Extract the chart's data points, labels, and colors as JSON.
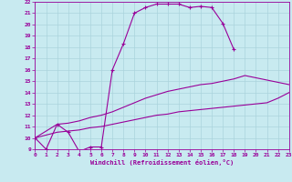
{
  "xlabel": "Windchill (Refroidissement éolien,°C)",
  "bg_color": "#c8eaf0",
  "line_color": "#990099",
  "grid_color": "#aad4dc",
  "xmin": 0,
  "xmax": 23,
  "ymin": 9,
  "ymax": 22,
  "yticks": [
    9,
    10,
    11,
    12,
    13,
    14,
    15,
    16,
    17,
    18,
    19,
    20,
    21,
    22
  ],
  "xticks": [
    0,
    1,
    2,
    3,
    4,
    5,
    6,
    7,
    8,
    9,
    10,
    11,
    12,
    13,
    14,
    15,
    16,
    17,
    18,
    19,
    20,
    21,
    22,
    23
  ],
  "line1_x": [
    0,
    1,
    2,
    3,
    4,
    5,
    6,
    7,
    8,
    9,
    10,
    11,
    12,
    13,
    14,
    15,
    16,
    17,
    18
  ],
  "line1_y": [
    10,
    9,
    11.2,
    10.5,
    8.8,
    9.2,
    9.2,
    16.0,
    18.3,
    21.0,
    21.5,
    21.8,
    21.8,
    21.8,
    21.5,
    21.6,
    21.5,
    20.1,
    17.8
  ],
  "line2_x": [
    0,
    2,
    3,
    4,
    5,
    6,
    7,
    8,
    9,
    10,
    11,
    12,
    13,
    14,
    15,
    16,
    17,
    18,
    19,
    20,
    21,
    22,
    23
  ],
  "line2_y": [
    10,
    11.2,
    11.3,
    11.5,
    11.8,
    12.0,
    12.3,
    12.7,
    13.1,
    13.5,
    13.8,
    14.1,
    14.3,
    14.5,
    14.7,
    14.8,
    15.0,
    15.2,
    15.5,
    15.3,
    15.1,
    14.9,
    14.7
  ],
  "line3_x": [
    0,
    2,
    3,
    4,
    5,
    6,
    7,
    8,
    9,
    10,
    11,
    12,
    13,
    14,
    15,
    16,
    17,
    18,
    19,
    20,
    21,
    22,
    23
  ],
  "line3_y": [
    10,
    10.5,
    10.6,
    10.7,
    10.9,
    11.0,
    11.2,
    11.4,
    11.6,
    11.8,
    12.0,
    12.1,
    12.3,
    12.4,
    12.5,
    12.6,
    12.7,
    12.8,
    12.9,
    13.0,
    13.1,
    13.5,
    14.0
  ]
}
